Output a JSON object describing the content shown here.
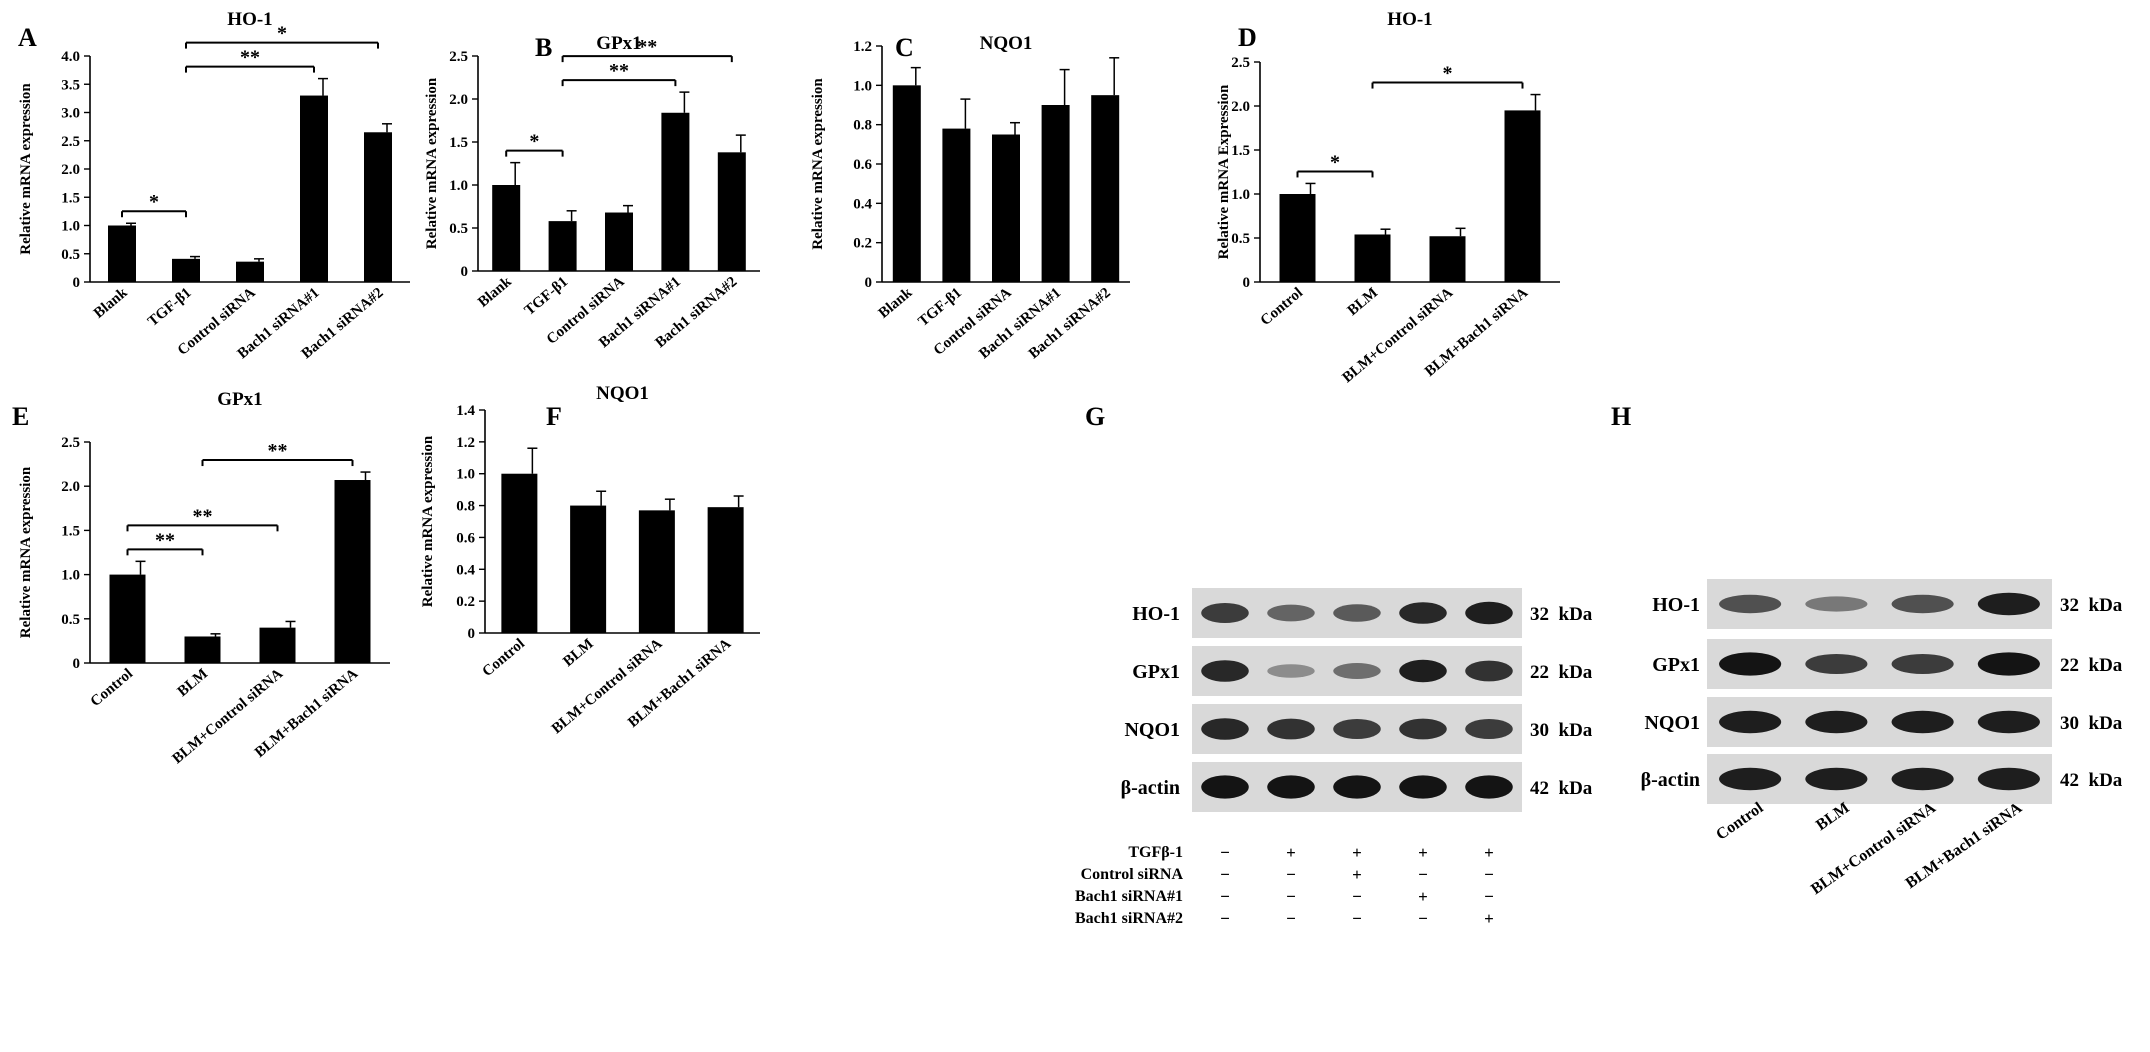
{
  "chart_data": [
    {
      "panel": "A",
      "type": "bar",
      "title": "HO-1",
      "xlabel": "",
      "ylabel": "Relative mRNA  expression",
      "ylim": [
        0,
        4.0
      ],
      "yticks": [
        "0",
        "0.5",
        "1.0",
        "1.5",
        "2.0",
        "2.5",
        "3.0",
        "3.5",
        "4.0"
      ],
      "categories": [
        "Blank",
        "TGF-β1",
        "Control siRNA",
        "Bach1 siRNA#1",
        "Bach1 siRNA#2"
      ],
      "values": [
        1.0,
        0.41,
        0.36,
        3.3,
        2.65
      ],
      "errors": [
        0.04,
        0.04,
        0.05,
        0.3,
        0.15
      ],
      "significance": [
        {
          "from": 0,
          "to": 1,
          "label": "*"
        },
        {
          "from": 1,
          "to": 3,
          "label": "**"
        },
        {
          "from": 1,
          "to": 4,
          "label": "*"
        }
      ]
    },
    {
      "panel": "B",
      "type": "bar",
      "title": "GPx1",
      "xlabel": "",
      "ylabel": "Relative mRNA  expression",
      "ylim": [
        0,
        2.5
      ],
      "yticks": [
        "0",
        "0.5",
        "1.0",
        "1.5",
        "2.0",
        "2.5"
      ],
      "categories": [
        "Blank",
        "TGF-β1",
        "Control siRNA",
        "Bach1 siRNA#1",
        "Bach1 siRNA#2"
      ],
      "values": [
        1.0,
        0.58,
        0.68,
        1.84,
        1.38
      ],
      "errors": [
        0.26,
        0.12,
        0.08,
        0.24,
        0.2
      ],
      "significance": [
        {
          "from": 0,
          "to": 1,
          "label": "*"
        },
        {
          "from": 1,
          "to": 3,
          "label": "**"
        },
        {
          "from": 1,
          "to": 4,
          "label": "**"
        }
      ]
    },
    {
      "panel": "C",
      "type": "bar",
      "title": "NQO1",
      "xlabel": "",
      "ylabel": "Relative mRNA  expression",
      "ylim": [
        0,
        1.2
      ],
      "yticks": [
        "0",
        "0.2",
        "0.4",
        "0.6",
        "0.8",
        "1.0",
        "1.2"
      ],
      "categories": [
        "Blank",
        "TGF-β1",
        "Control siRNA",
        "Bach1 siRNA#1",
        "Bach1 siRNA#2"
      ],
      "values": [
        1.0,
        0.78,
        0.75,
        0.9,
        0.95
      ],
      "errors": [
        0.09,
        0.15,
        0.06,
        0.18,
        0.19
      ],
      "significance": []
    },
    {
      "panel": "D",
      "type": "bar",
      "title": "HO-1",
      "xlabel": "",
      "ylabel": "Relative mRNA Expression",
      "ylim": [
        0,
        2.5
      ],
      "yticks": [
        "0",
        "0.5",
        "1.0",
        "1.5",
        "2.0",
        "2.5"
      ],
      "categories": [
        "Control",
        "BLM",
        "BLM+Control siRNA",
        "BLM+Bach1 siRNA"
      ],
      "values": [
        1.0,
        0.54,
        0.52,
        1.95
      ],
      "errors": [
        0.12,
        0.06,
        0.09,
        0.18
      ],
      "significance": [
        {
          "from": 0,
          "to": 1,
          "label": "*"
        },
        {
          "from": 1,
          "to": 3,
          "label": "*"
        }
      ]
    },
    {
      "panel": "E",
      "type": "bar",
      "title": "GPx1",
      "xlabel": "",
      "ylabel": "Relative mRNA  expression",
      "ylim": [
        0,
        2.5
      ],
      "yticks": [
        "0",
        "0.5",
        "1.0",
        "1.5",
        "2.0",
        "2.5"
      ],
      "categories": [
        "Control",
        "BLM",
        "BLM+Control siRNA",
        "BLM+Bach1 siRNA"
      ],
      "values": [
        1.0,
        0.3,
        0.4,
        2.07
      ],
      "errors": [
        0.15,
        0.03,
        0.07,
        0.09
      ],
      "significance": [
        {
          "from": 0,
          "to": 1,
          "label": "**"
        },
        {
          "from": 0,
          "to": 2,
          "label": "**"
        },
        {
          "from": 1,
          "to": 3,
          "label": "**"
        }
      ]
    },
    {
      "panel": "F",
      "type": "bar",
      "title": "NQO1",
      "xlabel": "",
      "ylabel": "Relative mRNA expression",
      "ylim": [
        0,
        1.4
      ],
      "yticks": [
        "0",
        "0.2",
        "0.4",
        "0.6",
        "0.8",
        "1.0",
        "1.2",
        "1.4"
      ],
      "categories": [
        "Control",
        "BLM",
        "BLM+Control siRNA",
        "BLM+Bach1 siRNA"
      ],
      "values": [
        1.0,
        0.8,
        0.77,
        0.79
      ],
      "errors": [
        0.16,
        0.09,
        0.07,
        0.07
      ],
      "significance": []
    }
  ],
  "blots": [
    {
      "panel": "G",
      "lanes": [
        "1",
        "2",
        "3",
        "4",
        "5"
      ],
      "rows": [
        {
          "name": "HO-1",
          "kda": "32  kDa",
          "intensity": [
            0.75,
            0.55,
            0.6,
            0.85,
            0.9
          ]
        },
        {
          "name": "GPx1",
          "kda": "22  kDa",
          "intensity": [
            0.85,
            0.35,
            0.5,
            0.9,
            0.8
          ]
        },
        {
          "name": "NQO1",
          "kda": "30  kDa",
          "intensity": [
            0.85,
            0.8,
            0.75,
            0.8,
            0.75
          ]
        },
        {
          "name": "β-actin",
          "kda": "42  kDa",
          "intensity": [
            0.95,
            0.95,
            0.95,
            0.95,
            0.95
          ]
        }
      ],
      "conditions": [
        {
          "name": "TGFβ-1",
          "signs": [
            "−",
            "+",
            "+",
            "+",
            "+"
          ]
        },
        {
          "name": "Control siRNA",
          "signs": [
            "−",
            "−",
            "+",
            "−",
            "−"
          ]
        },
        {
          "name": "Bach1 siRNA#1",
          "signs": [
            "−",
            "−",
            "−",
            "+",
            "−"
          ]
        },
        {
          "name": "Bach1 siRNA#2",
          "signs": [
            "−",
            "−",
            "−",
            "−",
            "+"
          ]
        }
      ],
      "labels": []
    },
    {
      "panel": "H",
      "lanes": [
        "1",
        "2",
        "3",
        "4"
      ],
      "rows": [
        {
          "name": "HO-1",
          "kda": "32  kDa",
          "intensity": [
            0.65,
            0.45,
            0.65,
            0.9
          ]
        },
        {
          "name": "GPx1",
          "kda": "22  kDa",
          "intensity": [
            0.95,
            0.75,
            0.75,
            0.95
          ]
        },
        {
          "name": "NQO1",
          "kda": "30  kDa",
          "intensity": [
            0.9,
            0.9,
            0.9,
            0.9
          ]
        },
        {
          "name": "β-actin",
          "kda": "42  kDa",
          "intensity": [
            0.9,
            0.9,
            0.9,
            0.9
          ]
        }
      ],
      "conditions": [],
      "labels": [
        "Control",
        "BLM",
        "BLM+Control siRNA",
        "BLM+Bach1 siRNA"
      ]
    }
  ]
}
